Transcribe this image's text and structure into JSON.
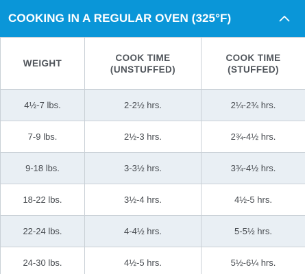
{
  "accordion": {
    "title": "COOKING IN A REGULAR OVEN (325°F)",
    "expanded": true,
    "header_color": "#0a96d8",
    "toggle_icon": "chevron-up-icon"
  },
  "table": {
    "headers": [
      {
        "line1": "WEIGHT",
        "line2": ""
      },
      {
        "line1": "COOK TIME",
        "line2": "(UNSTUFFED)"
      },
      {
        "line1": "COOK TIME",
        "line2": "(STUFFED)"
      }
    ],
    "rows": [
      [
        "4½-7 lbs.",
        "2-2½ hrs.",
        "2¼-2¾ hrs."
      ],
      [
        "7-9 lbs.",
        "2½-3 hrs.",
        "2¾-4½ hrs."
      ],
      [
        "9-18 lbs.",
        "3-3½ hrs.",
        "3¾-4½ hrs."
      ],
      [
        "18-22 lbs.",
        "3½-4 hrs.",
        "4½-5 hrs."
      ],
      [
        "22-24 lbs.",
        "4-4½ hrs.",
        "5-5½ hrs."
      ],
      [
        "24-30 lbs.",
        "4½-5 hrs.",
        "5½-6¼ hrs."
      ]
    ],
    "shaded_row_color": "#e9eff4"
  }
}
